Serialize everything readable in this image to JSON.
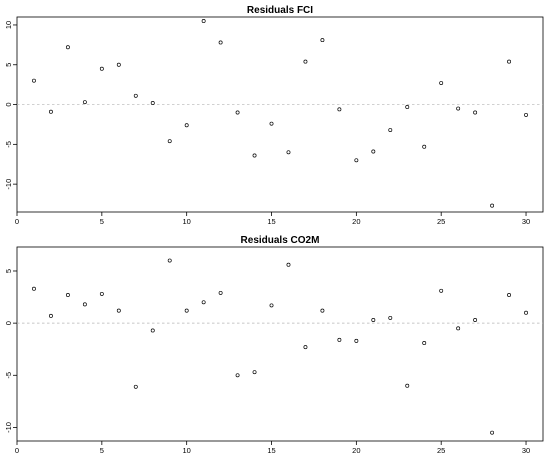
{
  "chart_data": [
    {
      "type": "scatter",
      "title": "Residuals FCI",
      "xlabel": "",
      "ylabel": "",
      "xlim": [
        0,
        31
      ],
      "ylim": [
        -13.5,
        11
      ],
      "xticks": [
        0,
        5,
        10,
        15,
        20,
        25,
        30
      ],
      "yticks": [
        -10,
        -5,
        0,
        5,
        10
      ],
      "reference_line": {
        "y": 0,
        "style": "dotted",
        "color": "#b5b5b5"
      },
      "series": [
        {
          "x": [
            1,
            2,
            3,
            4,
            5,
            6,
            7,
            8,
            9,
            10,
            11,
            12,
            13,
            14,
            15,
            16,
            17,
            18,
            19,
            20,
            21,
            22,
            23,
            24,
            25,
            26,
            27,
            28,
            29,
            30
          ],
          "y": [
            3.0,
            -0.9,
            7.2,
            0.3,
            4.5,
            5.0,
            1.1,
            0.2,
            -4.6,
            -2.6,
            10.5,
            7.8,
            -1.0,
            -6.4,
            -2.4,
            -6.0,
            5.4,
            8.1,
            -0.6,
            -7.0,
            -5.9,
            -3.2,
            -0.3,
            -5.3,
            2.7,
            -0.5,
            -1.0,
            -12.7,
            5.4,
            -1.3
          ]
        }
      ]
    },
    {
      "type": "scatter",
      "title": "Residuals CO2M",
      "xlabel": "",
      "ylabel": "",
      "xlim": [
        0,
        31
      ],
      "ylim": [
        -11.3,
        7.3
      ],
      "xticks": [
        0,
        5,
        10,
        15,
        20,
        25,
        30
      ],
      "yticks": [
        -10,
        -5,
        0,
        5
      ],
      "reference_line": {
        "y": 0,
        "style": "dotted",
        "color": "#b5b5b5"
      },
      "series": [
        {
          "x": [
            1,
            2,
            3,
            4,
            5,
            6,
            7,
            8,
            9,
            10,
            11,
            12,
            13,
            14,
            15,
            16,
            17,
            18,
            19,
            20,
            21,
            22,
            23,
            24,
            25,
            26,
            27,
            28,
            29,
            30
          ],
          "y": [
            3.3,
            0.7,
            2.7,
            1.8,
            2.8,
            1.2,
            -6.1,
            -0.7,
            6.0,
            1.2,
            2.0,
            2.9,
            -5.0,
            -4.7,
            1.7,
            5.6,
            -2.3,
            1.2,
            -1.6,
            -1.7,
            0.3,
            0.5,
            -6.0,
            -1.9,
            3.1,
            -0.5,
            0.3,
            -10.5,
            2.7,
            1.0
          ]
        }
      ]
    }
  ]
}
